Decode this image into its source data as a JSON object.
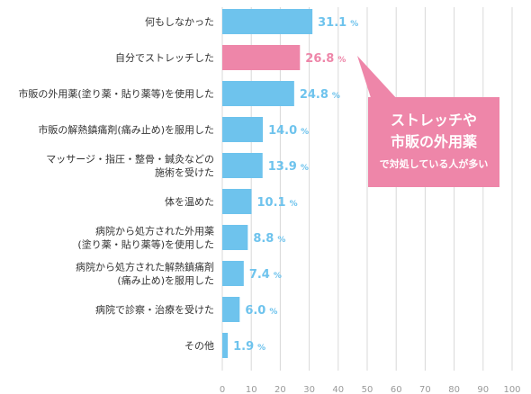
{
  "chart_data": {
    "type": "bar",
    "orientation": "horizontal",
    "categories": [
      [
        "何もしなかった"
      ],
      [
        "自分でストレッチした"
      ],
      [
        "市販の外用薬(塗り薬・貼り薬等)を使用した"
      ],
      [
        "市販の解熱鎮痛剤(痛み止め)を服用した"
      ],
      [
        "マッサージ・指圧・整骨・鍼灸などの",
        "施術を受けた"
      ],
      [
        "体を温めた"
      ],
      [
        "病院から処方された外用薬",
        "(塗り薬・貼り薬等)を使用した"
      ],
      [
        "病院から処方された解熱鎮痛剤",
        "(痛み止め)を服用した"
      ],
      [
        "病院で診察・治療を受けた"
      ],
      [
        "その他"
      ]
    ],
    "values": [
      31.1,
      26.8,
      24.8,
      14.0,
      13.9,
      10.1,
      8.8,
      7.4,
      6.0,
      1.9
    ],
    "value_labels": [
      "31.1",
      "26.8",
      "24.8",
      "14.0",
      "13.9",
      "10.1",
      "8.8",
      "7.4",
      "6.0",
      "1.9"
    ],
    "unit": "%",
    "highlight_index": 1,
    "xlim": [
      0,
      100
    ],
    "xticks": [
      0,
      10,
      20,
      30,
      40,
      50,
      60,
      70,
      80,
      90,
      100
    ],
    "grid": true
  },
  "colors": {
    "bar": "#6ec3ed",
    "highlight": "#ee86a9",
    "value_text": "#6ec3ed",
    "highlight_text": "#ee86a9",
    "grid": "#d8d8d8"
  },
  "callout": {
    "line1": "ストレッチや",
    "line2": "市販の外用薬",
    "line3": "で対処している人が多い"
  }
}
